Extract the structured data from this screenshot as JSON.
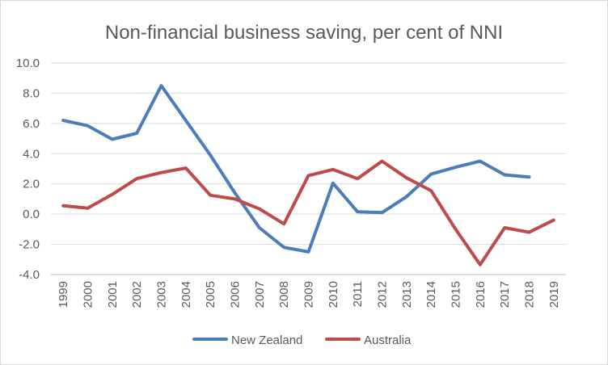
{
  "chart_data": {
    "type": "line",
    "title": "Non-financial business saving, per cent of NNI",
    "xlabel": "",
    "ylabel": "",
    "categories": [
      "1999",
      "2000",
      "2001",
      "2002",
      "2003",
      "2004",
      "2005",
      "2006",
      "2007",
      "2008",
      "2009",
      "2010",
      "2011",
      "2012",
      "2013",
      "2014",
      "2015",
      "2016",
      "2017",
      "2018",
      "2019"
    ],
    "ylim": [
      -4.0,
      10.0
    ],
    "yticks": [
      "10.0",
      "8.0",
      "6.0",
      "4.0",
      "2.0",
      "0.0",
      "-2.0",
      "-4.0"
    ],
    "grid": true,
    "legend": "bottom",
    "series": [
      {
        "name": "New Zealand",
        "color": "#4a7ebb",
        "values": [
          6.2,
          5.85,
          4.95,
          5.35,
          8.5,
          6.2,
          3.9,
          1.4,
          -0.9,
          -2.2,
          -2.5,
          2.05,
          0.15,
          0.1,
          1.15,
          2.65,
          3.1,
          3.5,
          2.6,
          2.45,
          null
        ]
      },
      {
        "name": "Australia",
        "color": "#be4b48",
        "values": [
          0.55,
          0.4,
          1.3,
          2.35,
          2.75,
          3.05,
          1.25,
          1.0,
          0.35,
          -0.65,
          2.55,
          2.95,
          2.35,
          3.5,
          2.4,
          1.55,
          -1.0,
          -3.35,
          -0.9,
          -1.2,
          -0.4
        ]
      }
    ]
  }
}
